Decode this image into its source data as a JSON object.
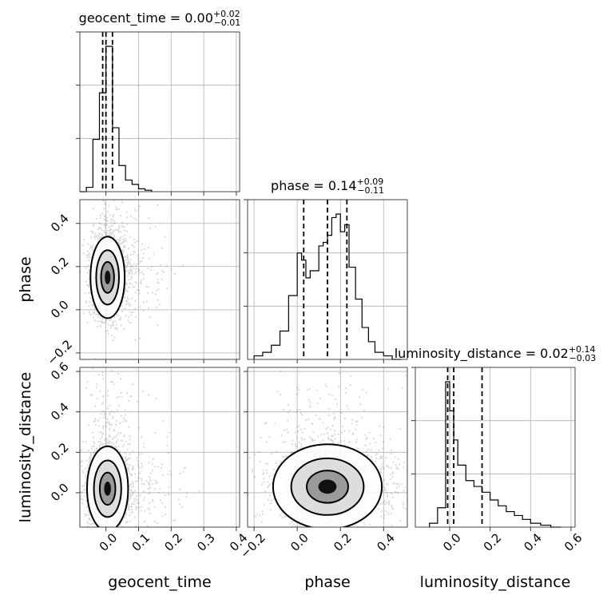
{
  "chart_data": {
    "type": "corner",
    "parameters": [
      "geocent_time",
      "phase",
      "luminosity_distance"
    ],
    "axis_labels": {
      "geocent_time": "geocent_time",
      "phase": "phase",
      "luminosity_distance": "luminosity_distance"
    },
    "ranges": {
      "geocent_time": [
        -0.08,
        0.41
      ],
      "phase": [
        -0.23,
        0.51
      ],
      "luminosity_distance": [
        -0.17,
        0.62
      ]
    },
    "ticks": {
      "geocent_time": [
        "0.0",
        "0.1",
        "0.2",
        "0.3",
        "0.4"
      ],
      "phase": [
        "−0.2",
        "0.0",
        "0.2",
        "0.4"
      ],
      "luminosity_distance": [
        "0.0",
        "0.2",
        "0.4",
        "0.6"
      ]
    },
    "tick_values": {
      "geocent_time": [
        0.0,
        0.1,
        0.2,
        0.3,
        0.4
      ],
      "phase": [
        -0.2,
        0.0,
        0.2,
        0.4
      ],
      "luminosity_distance": [
        0.0,
        0.2,
        0.4,
        0.6
      ]
    },
    "titles": [
      {
        "name": "geocent_time",
        "main": "geocent_time = 0.00",
        "plus": "+0.02",
        "minus": "−0.01"
      },
      {
        "name": "phase",
        "main": "phase = 0.14",
        "plus": "+0.09",
        "minus": "−0.11"
      },
      {
        "name": "luminosity_distance",
        "main": "luminosity_distance = 0.02",
        "plus": "+0.14",
        "minus": "−0.03"
      }
    ],
    "quantiles": {
      "geocent_time": [
        -0.01,
        0.0,
        0.02
      ],
      "phase": [
        0.03,
        0.14,
        0.23
      ],
      "luminosity_distance": [
        -0.01,
        0.02,
        0.16
      ]
    },
    "histograms": {
      "geocent_time": {
        "edges": [
          -0.08,
          -0.06,
          -0.04,
          -0.02,
          0.0,
          0.02,
          0.04,
          0.06,
          0.08,
          0.1,
          0.12,
          0.14
        ],
        "counts": [
          0,
          3,
          36,
          68,
          100,
          44,
          18,
          8,
          5,
          2,
          1
        ]
      },
      "phase": {
        "edges": [
          -0.2,
          -0.16,
          -0.12,
          -0.08,
          -0.04,
          0.0,
          0.02,
          0.04,
          0.06,
          0.08,
          0.1,
          0.12,
          0.14,
          0.16,
          0.18,
          0.2,
          0.22,
          0.24,
          0.27,
          0.3,
          0.33,
          0.36,
          0.4,
          0.44,
          0.48
        ],
        "counts": [
          1,
          2,
          4,
          8,
          18,
          30,
          28,
          23,
          25,
          25,
          32,
          33,
          35,
          40,
          41,
          36,
          38,
          26,
          17,
          9,
          5,
          2,
          1,
          0
        ]
      },
      "luminosity_distance": {
        "edges": [
          -0.1,
          -0.06,
          -0.02,
          0.0,
          0.02,
          0.04,
          0.08,
          0.12,
          0.16,
          0.2,
          0.24,
          0.28,
          0.32,
          0.36,
          0.4,
          0.45,
          0.5,
          0.55
        ],
        "counts": [
          2,
          10,
          75,
          60,
          45,
          32,
          24,
          21,
          18,
          14,
          11,
          8,
          6,
          4,
          2,
          1,
          0
        ]
      }
    },
    "density_cores": [
      {
        "x": "geocent_time",
        "y": "phase",
        "mean": [
          0.005,
          0.15
        ],
        "sd": [
          0.025,
          0.09
        ]
      },
      {
        "x": "geocent_time",
        "y": "luminosity_distance",
        "mean": [
          0.005,
          0.02
        ],
        "sd": [
          0.03,
          0.1
        ]
      },
      {
        "x": "phase",
        "y": "luminosity_distance",
        "mean": [
          0.14,
          0.03
        ],
        "sd": [
          0.12,
          0.1
        ]
      }
    ],
    "grid": true
  }
}
